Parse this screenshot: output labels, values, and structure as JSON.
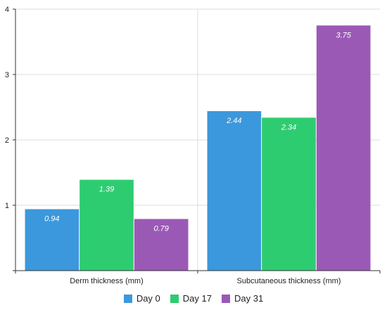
{
  "chart_data": {
    "type": "bar",
    "categories": [
      "Derm thickness (mm)",
      "Subcutaneous thickness (mm)"
    ],
    "series": [
      {
        "name": "Day 0",
        "values": [
          0.94,
          2.44
        ],
        "labels": [
          "0.94",
          "2.44"
        ],
        "color": "#3c98dc"
      },
      {
        "name": "Day 17",
        "values": [
          1.39,
          2.34
        ],
        "labels": [
          "1.39",
          "2.34"
        ],
        "color": "#2ecc71"
      },
      {
        "name": "Day 31",
        "values": [
          0.79,
          3.75
        ],
        "labels": [
          "0.79",
          "3.75"
        ],
        "color": "#9b59b6"
      }
    ],
    "ylim": [
      0,
      4
    ],
    "yticks": [
      1,
      2,
      3,
      4
    ],
    "ytick_labels": [
      "1",
      "2",
      "3",
      "4"
    ],
    "grid": true,
    "legend_position": "bottom-center"
  }
}
